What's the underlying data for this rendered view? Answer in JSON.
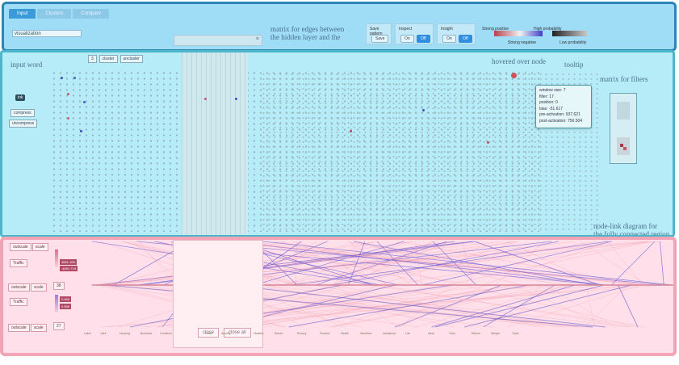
{
  "toolbar": {
    "tabs": [
      "Input",
      "Clusters",
      "Compare"
    ],
    "input_value": "visualization",
    "close_x": "×",
    "matrix_anno": [
      "matrix for edges between",
      "the hidden layer and the"
    ],
    "save_pattern": {
      "title": "Save pattern",
      "save": "Save"
    },
    "inspect": {
      "title": "Inspect",
      "on": "On",
      "off": "Off"
    },
    "insight": {
      "title": "Insight",
      "on": "On",
      "off": "Off"
    },
    "legend": {
      "strong_positive": "Strong positive",
      "strong_negative": "Strong negative",
      "high_probability": "High probability",
      "low_probability": "Low probability"
    },
    "colors": {
      "accent": "#2f8ee0",
      "positive": "#b6414b",
      "negative": "#3e40c8"
    }
  },
  "middle": {
    "input_word_anno": "input word",
    "cluster_label": "cluster",
    "uncluster_label": "uncluster",
    "select_value": "3",
    "compress": "compress",
    "uncompress": "uncompress",
    "selected_tag": "ink",
    "hovered_anno": "hovered over node",
    "tooltip_anno": "tooltip",
    "filters_anno": "matrix for filters",
    "tooltip": {
      "window_size": "window size: 7",
      "filter": "filter: 17",
      "position": "position: 0",
      "bias": "bias: -51.617",
      "pre": "pre-activation: 937.621",
      "post": "post-activation: 756.504"
    },
    "node_link_anno": [
      "node-link diagram for",
      "the fully connected region"
    ]
  },
  "bottom": {
    "buttons": [
      {
        "name": "outscale",
        "label": "outscale"
      },
      {
        "name": "scale",
        "label": "scale"
      },
      {
        "name": "traffic",
        "label": "Traffic"
      },
      {
        "name": "outscale2",
        "label": "outscale"
      },
      {
        "name": "scale2",
        "label": "scale"
      },
      {
        "name": "traffic2",
        "label": "Traffic"
      },
      {
        "name": "outscale3",
        "label": "outscale"
      },
      {
        "name": "scale3",
        "label": "scale"
      }
    ],
    "values": [
      "3821.108",
      "-4091.719",
      "0.466",
      "0.558"
    ],
    "select_a": "38",
    "select_b": "27",
    "close_label": "close",
    "close_all_label": "close all",
    "node_labels": [
      "Label",
      "Joint",
      "Housing",
      "Business",
      "Condition",
      "Other",
      "Anxiety",
      "HealthA",
      "Return",
      "Privacy",
      "Finance",
      "Health",
      "Workflow",
      "Imbalance",
      "Life",
      "Ideal",
      "Tutor",
      "Ethical",
      "Weight",
      "Tuple"
    ]
  }
}
